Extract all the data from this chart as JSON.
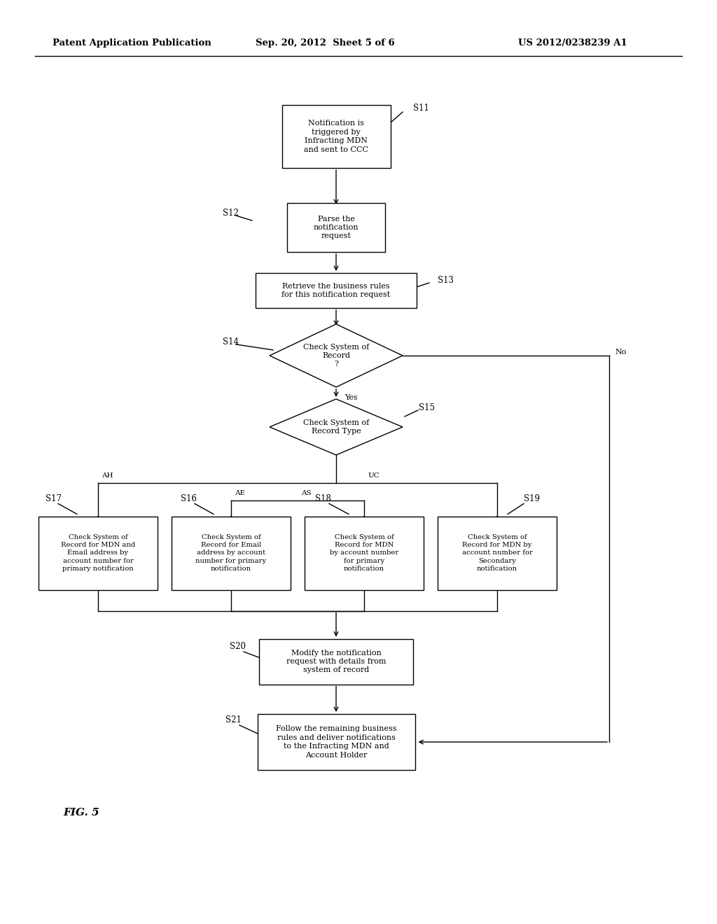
{
  "bg_color": "#ffffff",
  "header_left": "Patent Application Publication",
  "header_mid": "Sep. 20, 2012  Sheet 5 of 6",
  "header_right": "US 2012/0238239 A1",
  "fig_label": "FIG. 5",
  "s11_label": "Notification is\ntriggered by\nInfracting MDN\nand sent to CCC",
  "s12_label": "Parse the\nnotification\nrequest",
  "s13_label": "Retrieve the business rules\nfor this notification request",
  "s14_label": "Check System of\nRecord\n?",
  "s15_label": "Check System of\nRecord Type",
  "s17_label": "Check System of\nRecord for MDN and\nEmail address by\naccount number for\nprimary notification",
  "s16_label": "Check System of\nRecord for Email\naddress by account\nnumber for primary\nnotification",
  "s18_label": "Check System of\nRecord for MDN\nby account number\nfor primary\nnotification",
  "s19_label": "Check System of\nRecord for MDN by\naccount number for\nSecondary\nnotification",
  "s20_label": "Modify the notification\nrequest with details from\nsystem of record",
  "s21_label": "Follow the remaining business\nrules and deliver notifications\nto the Infracting MDN and\nAccount Holder"
}
